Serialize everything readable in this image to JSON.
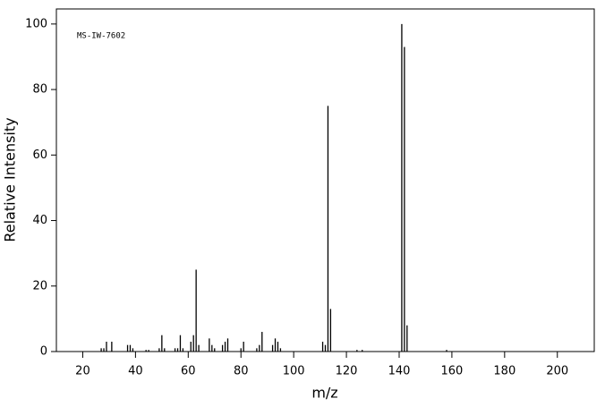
{
  "chart_data": {
    "type": "bar",
    "annotation": "MS-IW-7602",
    "x_label": "m/z",
    "y_label": "Relative Intensity",
    "x": [
      27,
      28,
      29,
      31,
      37,
      38,
      39,
      44,
      45,
      49,
      50,
      51,
      55,
      56,
      57,
      58,
      61,
      62,
      63,
      64,
      68,
      69,
      70,
      73,
      74,
      75,
      80,
      81,
      86,
      87,
      88,
      92,
      93,
      94,
      95,
      111,
      112,
      113,
      114,
      124,
      126,
      141,
      142,
      143,
      158
    ],
    "values": [
      1,
      1,
      3,
      3,
      2,
      2,
      1,
      0.5,
      0.5,
      1,
      5,
      1,
      1,
      1,
      5,
      1,
      3,
      5,
      25,
      2,
      4,
      2,
      1,
      2,
      3,
      4,
      1,
      3,
      1,
      2,
      6,
      2,
      4,
      3,
      1,
      3,
      2,
      75,
      13,
      0.5,
      0.5,
      100,
      93,
      8,
      0.5
    ],
    "color": "#000000",
    "xlim": [
      10,
      214
    ],
    "xticks": [
      20,
      40,
      60,
      80,
      100,
      120,
      140,
      160,
      180,
      200
    ],
    "ylim": [
      0,
      104.6
    ],
    "yticks": [
      0,
      20,
      40,
      60,
      80,
      100
    ]
  }
}
